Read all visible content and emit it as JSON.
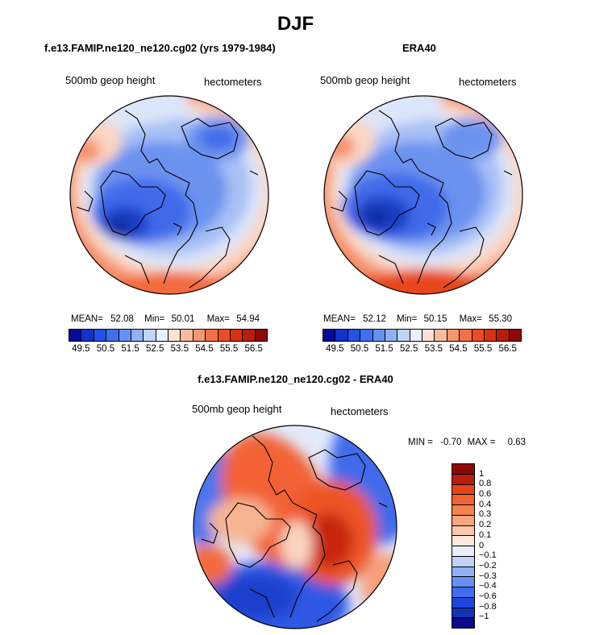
{
  "title": "DJF",
  "panels": {
    "model": {
      "title": "f.e13.FAMIP.ne120_ne120.cg02 (yrs 1979-1984)",
      "variable": "500mb geop height",
      "units": "hectometers",
      "stats": {
        "mean_label": "MEAN=",
        "mean": "52.08",
        "min_label": "Min=",
        "min": "50.01",
        "max_label": "Max=",
        "max": "54.94"
      }
    },
    "obs": {
      "title": "ERA40",
      "variable": "500mb geop height",
      "units": "hectometers",
      "stats": {
        "mean_label": "MEAN=",
        "mean": "52.12",
        "min_label": "Min=",
        "min": "50.15",
        "max_label": "Max=",
        "max": "55.30"
      }
    },
    "diff": {
      "title": "f.e13.FAMIP.ne120_ne120.cg02 - ERA40",
      "variable": "500mb geop height",
      "units": "hectometers",
      "stats": {
        "min_label": "MIN =",
        "min": "-0.70",
        "max_label": "MAX =",
        "max": "0.63"
      }
    }
  },
  "colorbar_abs": {
    "labels": [
      "49.5",
      "50.5",
      "51.5",
      "52.5",
      "53.5",
      "54.5",
      "55.5",
      "56.5"
    ],
    "colors": [
      "#0a0a96",
      "#1432c8",
      "#2352e6",
      "#3e6ff0",
      "#6690f2",
      "#92b0f4",
      "#c0d4f8",
      "#eaf0fc",
      "#fde3d6",
      "#f9bba0",
      "#f59770",
      "#f27148",
      "#ed4b22",
      "#d9300f",
      "#b81c0a",
      "#8c0a06"
    ]
  },
  "colorbar_diff": {
    "labels": [
      "1",
      "0.8",
      "0.6",
      "0.4",
      "0.3",
      "0.2",
      "0.1",
      "0",
      "−0.1",
      "−0.2",
      "−0.3",
      "−0.4",
      "−0.6",
      "−0.8",
      "−1"
    ],
    "colors": [
      "#8c0a06",
      "#b81c0a",
      "#e8441a",
      "#f26234",
      "#f5834e",
      "#f7a77e",
      "#fac8ad",
      "#fde8dc",
      "#e8eefc",
      "#c0d4f8",
      "#92b0f4",
      "#6690f2",
      "#3e6ff0",
      "#1e48dc",
      "#1432b4",
      "#0a0a8c"
    ]
  }
}
